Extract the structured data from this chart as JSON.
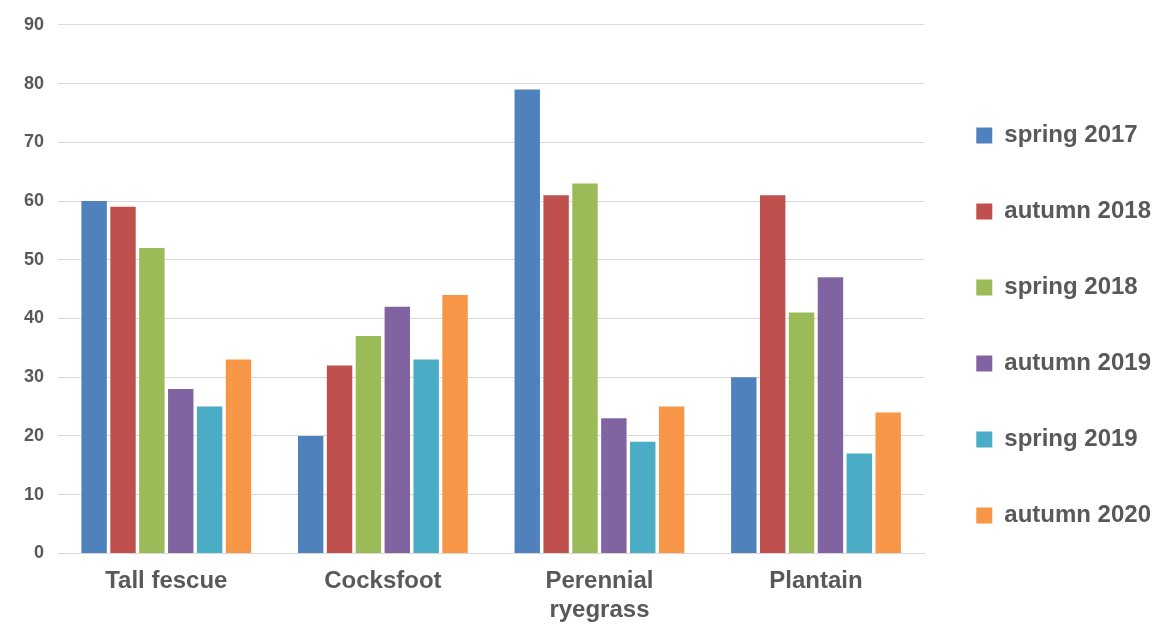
{
  "chart_data": {
    "type": "bar",
    "categories": [
      "Tall fescue",
      "Cocksfoot",
      "Perennial ryegrass",
      "Plantain"
    ],
    "series": [
      {
        "name": "spring 2017",
        "color": "#4f81bd",
        "values": [
          60,
          20,
          79,
          30
        ]
      },
      {
        "name": "autumn 2018",
        "color": "#c0504d",
        "values": [
          59,
          32,
          61,
          61
        ]
      },
      {
        "name": "spring 2018",
        "color": "#9bbb59",
        "values": [
          52,
          37,
          63,
          41
        ]
      },
      {
        "name": "autumn 2019",
        "color": "#8064a2",
        "values": [
          28,
          42,
          23,
          47
        ]
      },
      {
        "name": "spring 2019",
        "color": "#4bacc6",
        "values": [
          25,
          33,
          19,
          17
        ]
      },
      {
        "name": "autumn 2020",
        "color": "#f79646",
        "values": [
          33,
          44,
          25,
          24
        ]
      }
    ],
    "ylim": [
      0,
      90
    ],
    "yticks": [
      0,
      10,
      20,
      30,
      40,
      50,
      60,
      70,
      80,
      90
    ],
    "grid": "y",
    "legend": "right"
  }
}
